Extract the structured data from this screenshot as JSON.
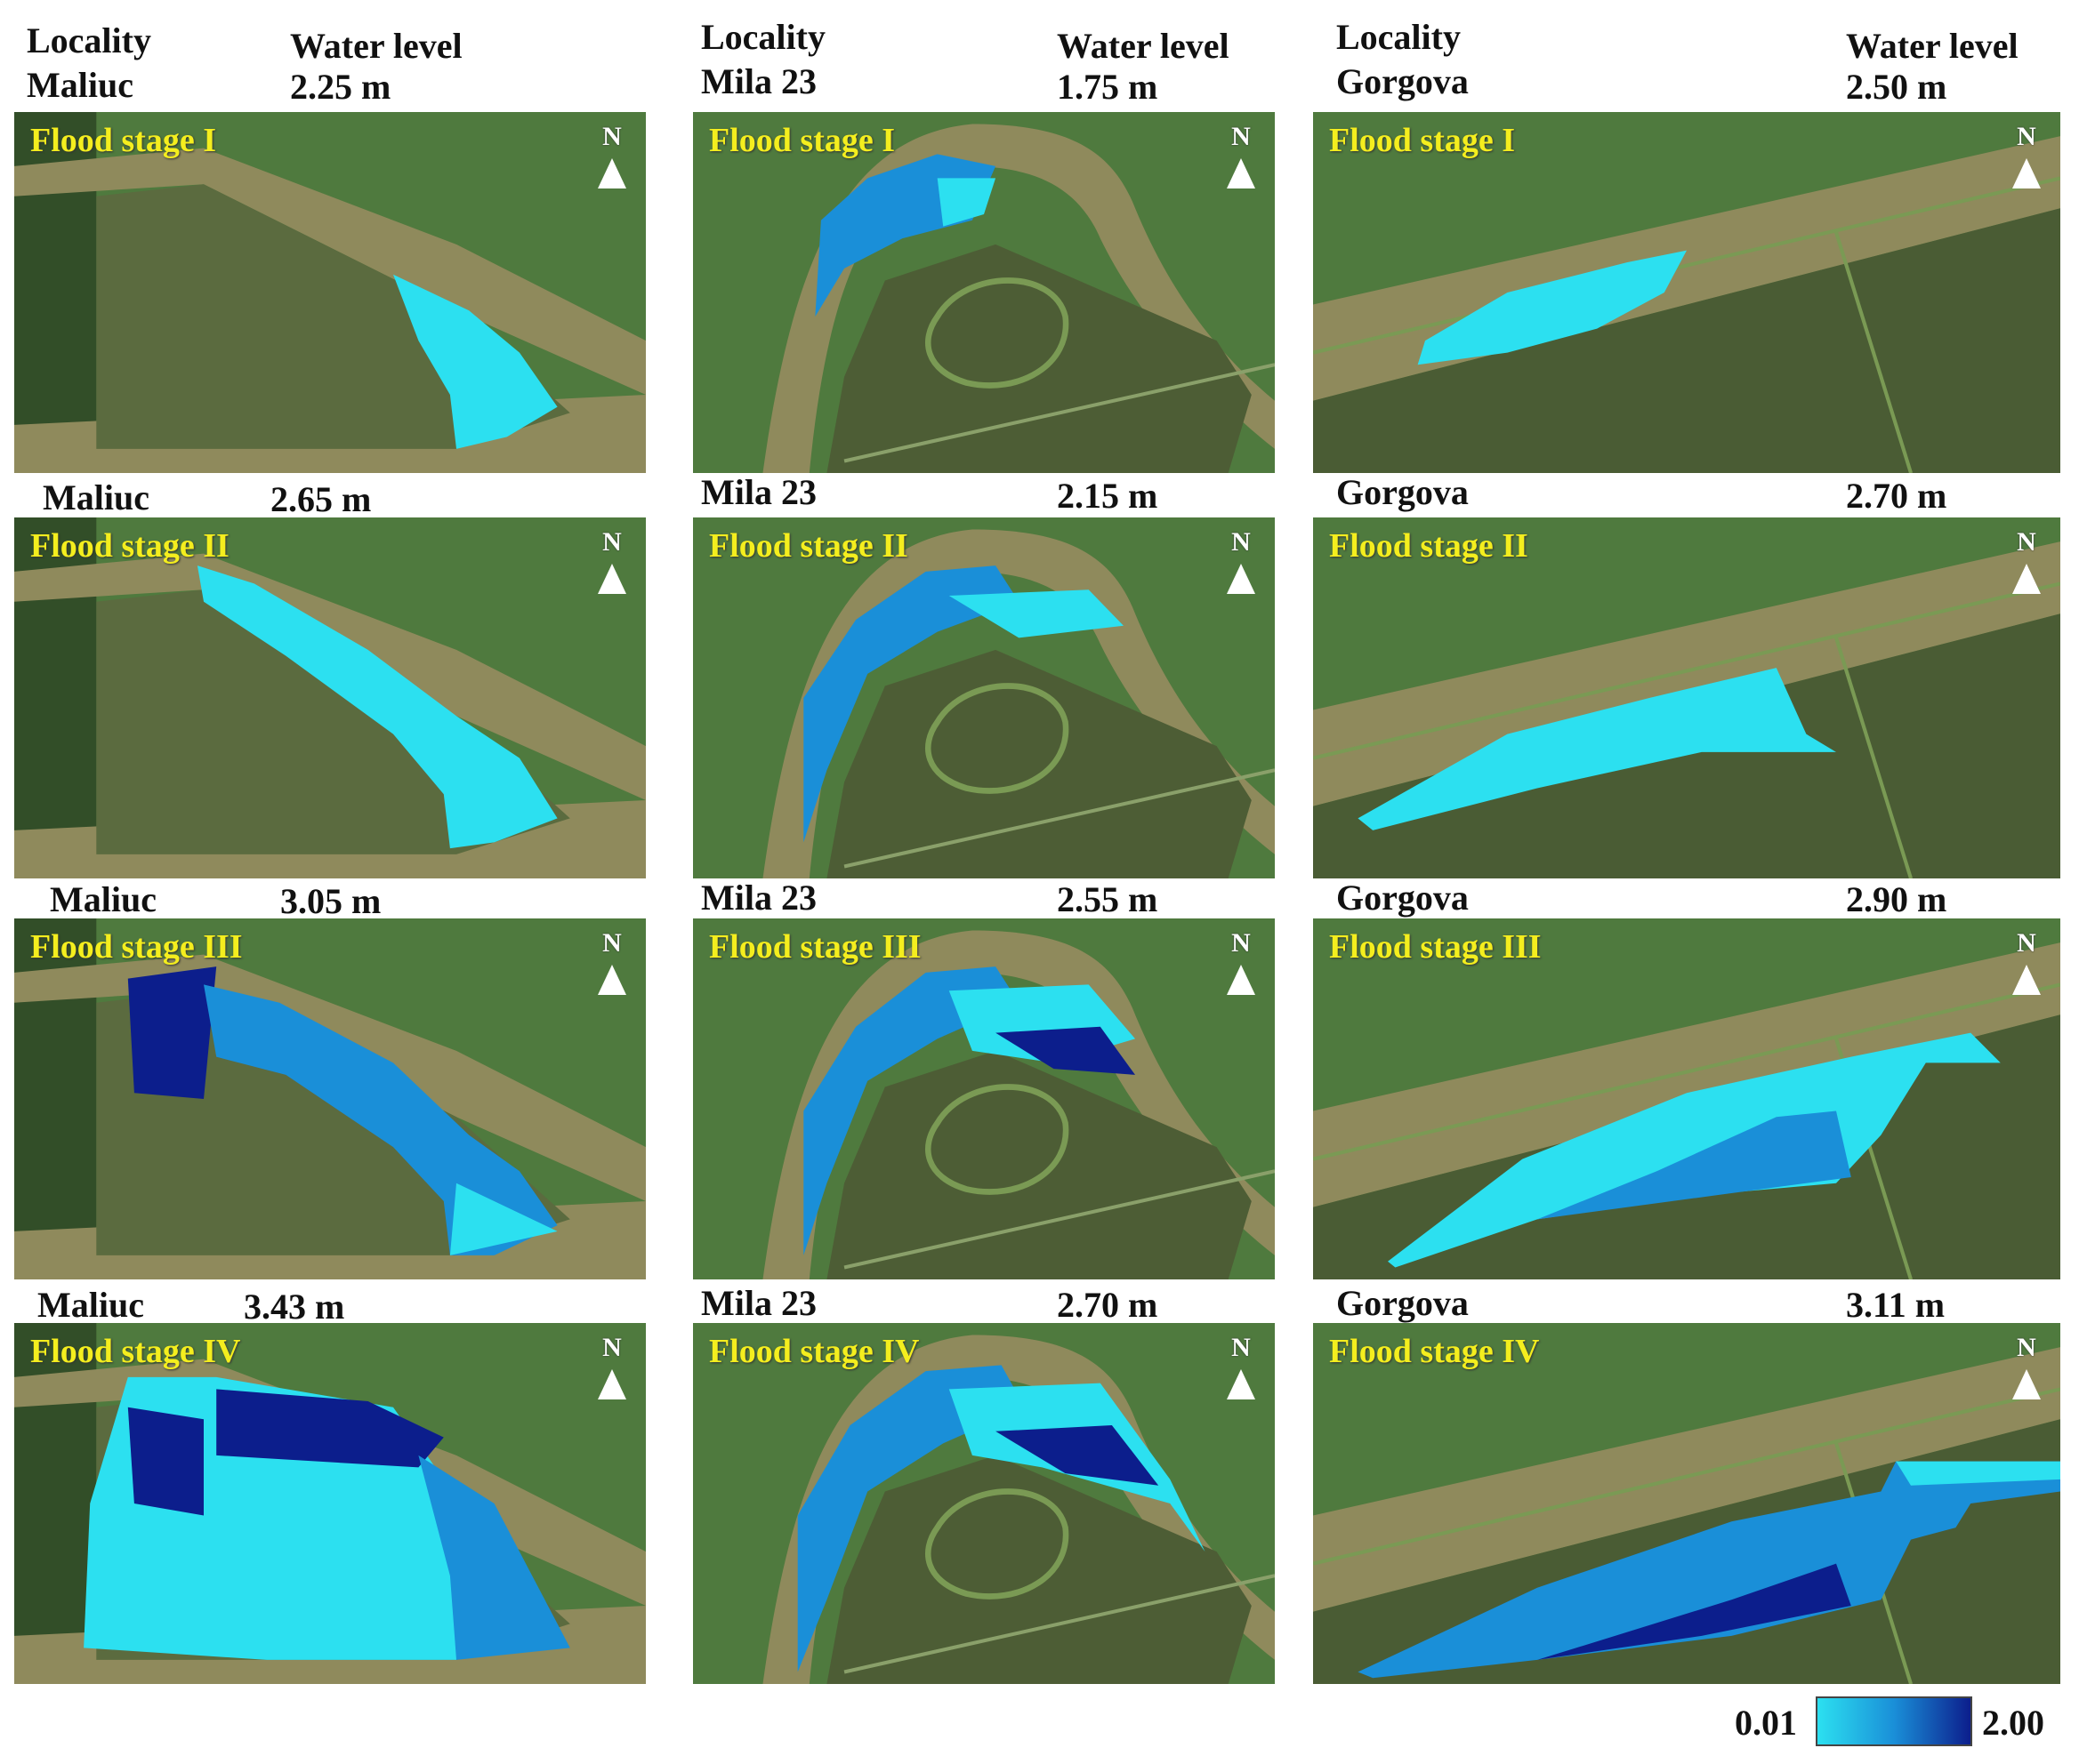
{
  "columns": [
    {
      "locality_heading": "Locality",
      "water_heading": "Water level",
      "stages": [
        {
          "locality": "Maliuc",
          "level": "2.25 m",
          "stage": "Flood stage I"
        },
        {
          "locality": "Maliuc",
          "level": "2.65 m",
          "stage": "Flood stage II"
        },
        {
          "locality": "Maliuc",
          "level": "3.05 m",
          "stage": "Flood stage III"
        },
        {
          "locality": "Maliuc",
          "level": "3.43 m",
          "stage": "Flood stage IV"
        }
      ]
    },
    {
      "locality_heading": "Locality",
      "water_heading": "Water level",
      "stages": [
        {
          "locality": "Mila 23",
          "level": "1.75 m",
          "stage": "Flood stage I"
        },
        {
          "locality": "Mila 23",
          "level": "2.15 m",
          "stage": "Flood stage II"
        },
        {
          "locality": "Mila 23",
          "level": "2.55 m",
          "stage": "Flood stage III"
        },
        {
          "locality": "Mila 23",
          "level": "2.70 m",
          "stage": "Flood stage IV"
        }
      ]
    },
    {
      "locality_heading": "Locality",
      "water_heading": "Water level",
      "stages": [
        {
          "locality": "Gorgova",
          "level": "2.50 m",
          "stage": "Flood stage I"
        },
        {
          "locality": "Gorgova",
          "level": "2.70 m",
          "stage": "Flood stage II"
        },
        {
          "locality": "Gorgova",
          "level": "2.90 m",
          "stage": "Flood stage III"
        },
        {
          "locality": "Gorgova",
          "level": "3.11 m",
          "stage": "Flood stage IV"
        }
      ]
    }
  ],
  "north_label": "N",
  "legend": {
    "min": "0.01",
    "max": "2.00"
  },
  "colors": {
    "stage_text": "#f4ee1e",
    "field_green": "#4f7a3e",
    "river": "#8f8a5c",
    "flood_light": "#2ce0f0",
    "flood_mid": "#1a8fd8",
    "flood_dark": "#0c1e8c"
  }
}
